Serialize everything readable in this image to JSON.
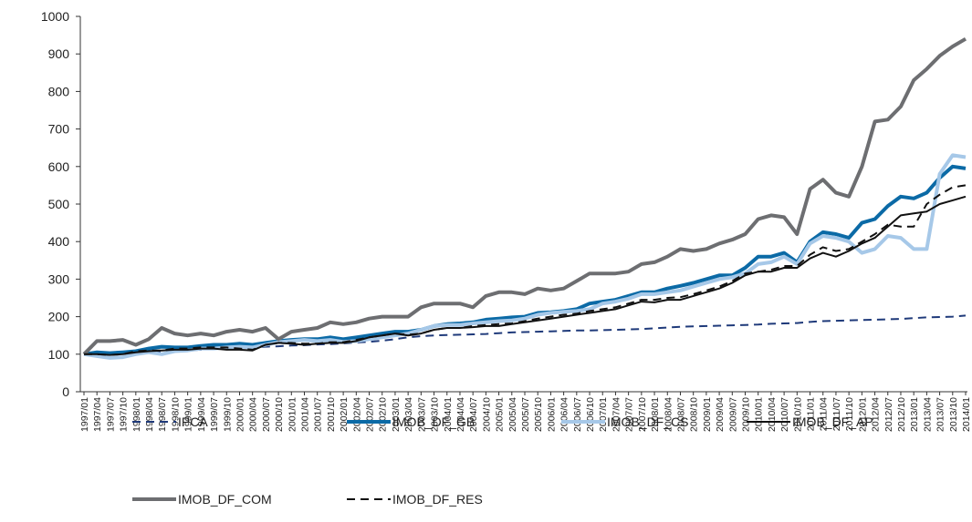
{
  "chart_data": {
    "type": "line",
    "categories": [
      "1997/01",
      "1997/04",
      "1997/07",
      "1997/10",
      "1998/01",
      "1998/04",
      "1998/07",
      "1998/10",
      "1999/01",
      "1999/04",
      "1999/07",
      "1999/10",
      "2000/01",
      "2000/04",
      "2000/07",
      "2000/10",
      "2001/01",
      "2001/04",
      "2001/07",
      "2001/10",
      "2002/01",
      "2002/04",
      "2002/07",
      "2002/10",
      "2003/01",
      "2003/04",
      "2003/07",
      "2003/10",
      "2004/01",
      "2004/04",
      "2004/07",
      "2004/10",
      "2005/01",
      "2005/04",
      "2005/07",
      "2005/10",
      "2006/01",
      "2006/04",
      "2006/07",
      "2006/10",
      "2007/01",
      "2007/04",
      "2007/07",
      "2007/10",
      "2008/01",
      "2008/04",
      "2008/07",
      "2008/10",
      "2009/01",
      "2009/04",
      "2009/07",
      "2009/10",
      "2010/01",
      "2010/04",
      "2010/07",
      "2010/10",
      "2011/01",
      "2011/04",
      "2011/07",
      "2011/10",
      "2012/01",
      "2012/04",
      "2012/07",
      "2012/10",
      "2013/01",
      "2013/04",
      "2013/07",
      "2013/10",
      "2014/01"
    ],
    "series": [
      {
        "name": "IPCA",
        "color": "#1f3a7a",
        "style": "dashed",
        "linewidth": 2,
        "values": [
          100,
          101,
          102,
          103,
          104,
          105,
          106,
          107,
          110,
          112,
          114,
          116,
          118,
          119,
          120,
          121,
          123,
          124,
          126,
          127,
          129,
          131,
          133,
          136,
          140,
          145,
          148,
          150,
          151,
          152,
          153,
          154,
          156,
          158,
          159,
          160,
          161,
          162,
          163,
          163,
          164,
          165,
          166,
          167,
          169,
          171,
          173,
          174,
          175,
          176,
          177,
          178,
          179,
          181,
          182,
          183,
          186,
          188,
          189,
          190,
          191,
          192,
          193,
          194,
          196,
          198,
          199,
          200,
          203
        ]
      },
      {
        "name": "IMOB_DF_GB",
        "color": "#0b6aa6",
        "style": "solid",
        "linewidth": 4,
        "values": [
          100,
          105,
          103,
          105,
          108,
          115,
          120,
          118,
          118,
          122,
          125,
          125,
          128,
          125,
          130,
          135,
          138,
          140,
          140,
          145,
          140,
          145,
          150,
          155,
          160,
          160,
          165,
          175,
          180,
          182,
          185,
          192,
          195,
          198,
          200,
          210,
          212,
          215,
          220,
          235,
          240,
          245,
          255,
          265,
          265,
          275,
          282,
          290,
          300,
          310,
          310,
          330,
          360,
          360,
          370,
          345,
          400,
          425,
          420,
          410,
          450,
          460,
          495,
          520,
          515,
          530,
          570,
          600,
          595
        ]
      },
      {
        "name": "IMOB_DF_CS",
        "color": "#a6c8e8",
        "style": "solid",
        "linewidth": 4,
        "values": [
          100,
          95,
          90,
          92,
          100,
          105,
          100,
          108,
          110,
          115,
          115,
          118,
          120,
          118,
          125,
          132,
          135,
          138,
          135,
          138,
          133,
          135,
          140,
          145,
          150,
          155,
          165,
          175,
          178,
          178,
          182,
          185,
          188,
          190,
          195,
          205,
          210,
          213,
          215,
          220,
          235,
          240,
          248,
          260,
          260,
          265,
          270,
          280,
          290,
          300,
          305,
          315,
          340,
          345,
          360,
          340,
          395,
          415,
          410,
          400,
          370,
          380,
          415,
          410,
          380,
          380,
          580,
          630,
          625
        ]
      },
      {
        "name": "IMOB_DF_AP",
        "color": "#111111",
        "style": "solid",
        "linewidth": 2,
        "values": [
          100,
          100,
          98,
          100,
          105,
          108,
          110,
          112,
          112,
          115,
          115,
          112,
          112,
          110,
          125,
          130,
          128,
          125,
          128,
          130,
          130,
          135,
          145,
          150,
          155,
          150,
          155,
          165,
          170,
          170,
          172,
          175,
          175,
          180,
          185,
          190,
          195,
          200,
          205,
          210,
          215,
          220,
          230,
          240,
          238,
          245,
          245,
          255,
          265,
          275,
          290,
          310,
          320,
          320,
          330,
          330,
          355,
          370,
          360,
          375,
          395,
          410,
          440,
          470,
          475,
          480,
          500,
          510,
          520
        ]
      },
      {
        "name": "IMOB_DF_COM",
        "color": "#6d6e71",
        "style": "solid",
        "linewidth": 4,
        "values": [
          100,
          135,
          135,
          138,
          125,
          140,
          170,
          155,
          150,
          155,
          150,
          160,
          165,
          160,
          170,
          140,
          160,
          165,
          170,
          185,
          180,
          185,
          195,
          200,
          200,
          200,
          225,
          235,
          235,
          235,
          225,
          255,
          265,
          265,
          260,
          275,
          270,
          275,
          295,
          315,
          315,
          315,
          320,
          340,
          345,
          360,
          380,
          375,
          380,
          395,
          405,
          420,
          460,
          470,
          465,
          420,
          540,
          565,
          530,
          520,
          600,
          720,
          725,
          760,
          830,
          860,
          895,
          920,
          940
        ]
      },
      {
        "name": "IMOB_DF_RES",
        "color": "#111111",
        "style": "dashed",
        "linewidth": 2,
        "values": [
          100,
          100,
          98,
          100,
          108,
          110,
          110,
          115,
          115,
          118,
          118,
          118,
          115,
          112,
          125,
          130,
          130,
          128,
          128,
          132,
          132,
          138,
          145,
          150,
          155,
          152,
          155,
          165,
          170,
          170,
          175,
          178,
          180,
          182,
          188,
          195,
          200,
          205,
          208,
          215,
          220,
          225,
          235,
          245,
          245,
          250,
          252,
          260,
          270,
          280,
          295,
          315,
          320,
          325,
          335,
          335,
          365,
          385,
          375,
          380,
          400,
          420,
          445,
          440,
          440,
          500,
          525,
          545,
          550
        ]
      }
    ],
    "ylim": [
      0,
      1000
    ],
    "yticks": [
      0,
      100,
      200,
      300,
      400,
      500,
      600,
      700,
      800,
      900,
      1000
    ],
    "grid": false
  }
}
